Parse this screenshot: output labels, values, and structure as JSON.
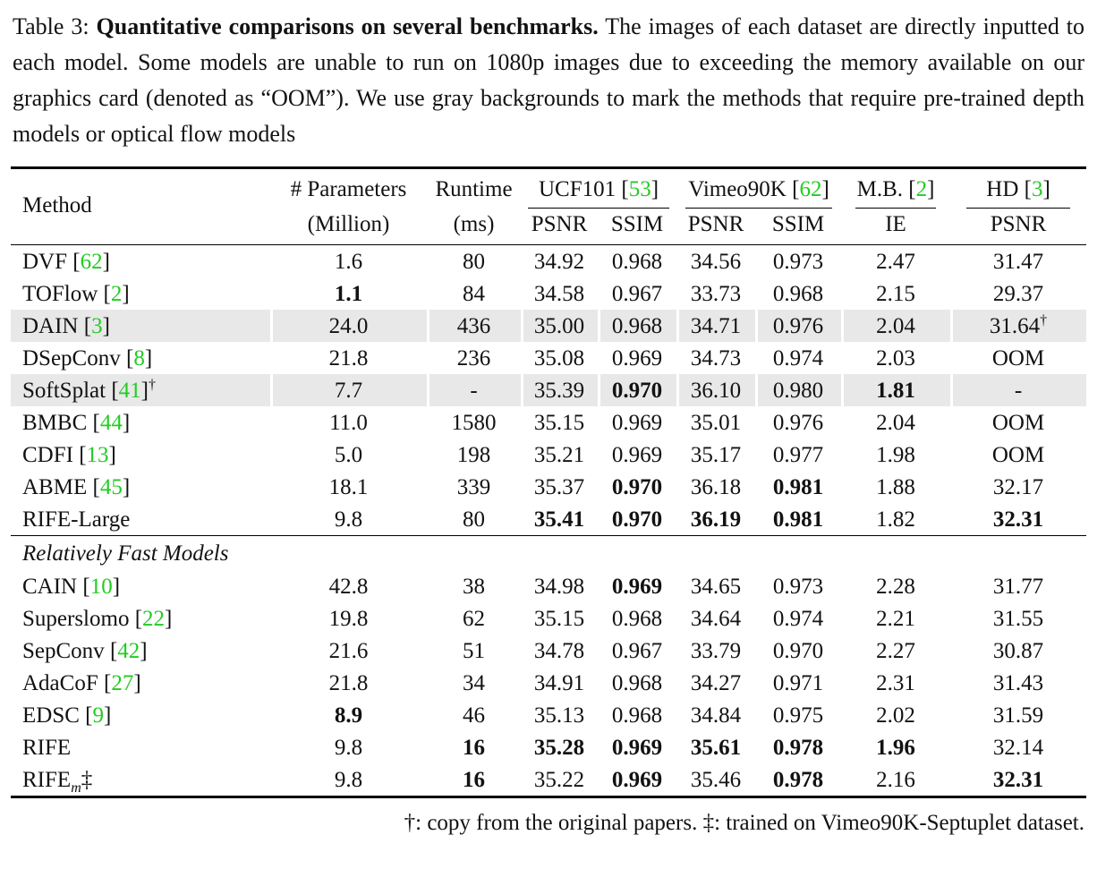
{
  "caption": {
    "label": "Table 3: ",
    "title_bold": "Quantitative comparisons on several benchmarks.",
    "rest": " The images of each dataset are directly inputted to each model. Some models are unable to run on 1080p images due to exceeding the memory available on our graphics card (denoted as “OOM”). We use gray backgrounds to mark the methods that require pre-trained depth models or optical flow models"
  },
  "table": {
    "header": {
      "method": "Method",
      "params": "# Parameters",
      "runtime": "Runtime",
      "groups": [
        {
          "name": "UCF101",
          "cite": "53"
        },
        {
          "name": "Vimeo90K",
          "cite": "62"
        },
        {
          "name": "M.B.",
          "cite": "2"
        },
        {
          "name": "HD",
          "cite": "3"
        }
      ],
      "sub": [
        "(Million)",
        "(ms)",
        "PSNR",
        "SSIM",
        "PSNR",
        "SSIM",
        "IE",
        "PSNR"
      ]
    },
    "rows": [
      {
        "method": "DVF",
        "cite": "62",
        "gray": false,
        "cells": [
          [
            "1.6",
            0
          ],
          [
            "80",
            0
          ],
          [
            "34.92",
            0
          ],
          [
            "0.968",
            0
          ],
          [
            "34.56",
            0
          ],
          [
            "0.973",
            0
          ],
          [
            "2.47",
            0
          ],
          [
            "31.47",
            0
          ]
        ]
      },
      {
        "method": "TOFlow",
        "cite": "2",
        "gray": false,
        "cells": [
          [
            "1.1",
            1
          ],
          [
            "84",
            0
          ],
          [
            "34.58",
            0
          ],
          [
            "0.967",
            0
          ],
          [
            "33.73",
            0
          ],
          [
            "0.968",
            0
          ],
          [
            "2.15",
            0
          ],
          [
            "29.37",
            0
          ]
        ]
      },
      {
        "method": "DAIN",
        "cite": "3",
        "gray": true,
        "cells": [
          [
            "24.0",
            0
          ],
          [
            "436",
            0
          ],
          [
            "35.00",
            0
          ],
          [
            "0.968",
            0
          ],
          [
            "34.71",
            0
          ],
          [
            "0.976",
            0
          ],
          [
            "2.04",
            0
          ],
          [
            "31.64",
            0,
            "†"
          ]
        ]
      },
      {
        "method": "DSepConv",
        "cite": "8",
        "gray": false,
        "cells": [
          [
            "21.8",
            0
          ],
          [
            "236",
            0
          ],
          [
            "35.08",
            0
          ],
          [
            "0.969",
            0
          ],
          [
            "34.73",
            0
          ],
          [
            "0.974",
            0
          ],
          [
            "2.03",
            0
          ],
          [
            "OOM",
            0
          ]
        ]
      },
      {
        "method": "SoftSplat",
        "cite": "41",
        "method_sup": "†",
        "gray": true,
        "cells": [
          [
            "7.7",
            0
          ],
          [
            "-",
            0
          ],
          [
            "35.39",
            0
          ],
          [
            "0.970",
            1
          ],
          [
            "36.10",
            0
          ],
          [
            "0.980",
            0
          ],
          [
            "1.81",
            1
          ],
          [
            "-",
            0
          ]
        ]
      },
      {
        "method": "BMBC",
        "cite": "44",
        "gray": false,
        "cells": [
          [
            "11.0",
            0
          ],
          [
            "1580",
            0
          ],
          [
            "35.15",
            0
          ],
          [
            "0.969",
            0
          ],
          [
            "35.01",
            0
          ],
          [
            "0.976",
            0
          ],
          [
            "2.04",
            0
          ],
          [
            "OOM",
            0
          ]
        ]
      },
      {
        "method": "CDFI",
        "cite": "13",
        "gray": false,
        "cells": [
          [
            "5.0",
            0
          ],
          [
            "198",
            0
          ],
          [
            "35.21",
            0
          ],
          [
            "0.969",
            0
          ],
          [
            "35.17",
            0
          ],
          [
            "0.977",
            0
          ],
          [
            "1.98",
            0
          ],
          [
            "OOM",
            0
          ]
        ]
      },
      {
        "method": "ABME",
        "cite": "45",
        "gray": false,
        "cells": [
          [
            "18.1",
            0
          ],
          [
            "339",
            0
          ],
          [
            "35.37",
            0
          ],
          [
            "0.970",
            1
          ],
          [
            "36.18",
            0
          ],
          [
            "0.981",
            1
          ],
          [
            "1.88",
            0
          ],
          [
            "32.17",
            0
          ]
        ]
      },
      {
        "method": "RIFE-Large",
        "gray": false,
        "cells": [
          [
            "9.8",
            0
          ],
          [
            "80",
            0
          ],
          [
            "35.41",
            1
          ],
          [
            "0.970",
            1
          ],
          [
            "36.19",
            1
          ],
          [
            "0.981",
            1
          ],
          [
            "1.82",
            0
          ],
          [
            "32.31",
            1
          ]
        ]
      },
      {
        "section": "Relatively Fast Models"
      },
      {
        "method": "CAIN",
        "cite": "10",
        "gray": false,
        "cells": [
          [
            "42.8",
            0
          ],
          [
            "38",
            0
          ],
          [
            "34.98",
            0
          ],
          [
            "0.969",
            1
          ],
          [
            "34.65",
            0
          ],
          [
            "0.973",
            0
          ],
          [
            "2.28",
            0
          ],
          [
            "31.77",
            0
          ]
        ]
      },
      {
        "method": "Superslomo",
        "cite": "22",
        "gray": false,
        "cells": [
          [
            "19.8",
            0
          ],
          [
            "62",
            0
          ],
          [
            "35.15",
            0
          ],
          [
            "0.968",
            0
          ],
          [
            "34.64",
            0
          ],
          [
            "0.974",
            0
          ],
          [
            "2.21",
            0
          ],
          [
            "31.55",
            0
          ]
        ]
      },
      {
        "method": "SepConv",
        "cite": "42",
        "gray": false,
        "cells": [
          [
            "21.6",
            0
          ],
          [
            "51",
            0
          ],
          [
            "34.78",
            0
          ],
          [
            "0.967",
            0
          ],
          [
            "33.79",
            0
          ],
          [
            "0.970",
            0
          ],
          [
            "2.27",
            0
          ],
          [
            "30.87",
            0
          ]
        ]
      },
      {
        "method": "AdaCoF",
        "cite": "27",
        "gray": false,
        "cells": [
          [
            "21.8",
            0
          ],
          [
            "34",
            0
          ],
          [
            "34.91",
            0
          ],
          [
            "0.968",
            0
          ],
          [
            "34.27",
            0
          ],
          [
            "0.971",
            0
          ],
          [
            "2.31",
            0
          ],
          [
            "31.43",
            0
          ]
        ]
      },
      {
        "method": "EDSC",
        "cite": "9",
        "gray": false,
        "cells": [
          [
            "8.9",
            1
          ],
          [
            "46",
            0
          ],
          [
            "35.13",
            0
          ],
          [
            "0.968",
            0
          ],
          [
            "34.84",
            0
          ],
          [
            "0.975",
            0
          ],
          [
            "2.02",
            0
          ],
          [
            "31.59",
            0
          ]
        ]
      },
      {
        "method": "RIFE",
        "gray": false,
        "cells": [
          [
            "9.8",
            0
          ],
          [
            "16",
            1
          ],
          [
            "35.28",
            1
          ],
          [
            "0.969",
            1
          ],
          [
            "35.61",
            1
          ],
          [
            "0.978",
            1
          ],
          [
            "1.96",
            1
          ],
          [
            "32.14",
            0
          ]
        ]
      },
      {
        "method": "RIFE",
        "method_sub": "m",
        "method_suffix": "‡",
        "gray": false,
        "cells": [
          [
            "9.8",
            0
          ],
          [
            "16",
            1
          ],
          [
            "35.22",
            0
          ],
          [
            "0.969",
            1
          ],
          [
            "35.46",
            0
          ],
          [
            "0.978",
            1
          ],
          [
            "2.16",
            0
          ],
          [
            "32.31",
            1
          ]
        ]
      }
    ]
  },
  "footnote": "†: copy from the original papers. ‡: trained on Vimeo90K-Septuplet dataset.",
  "colors": {
    "citation_green": "#22cc22",
    "row_gray": "#e8e8e8"
  }
}
